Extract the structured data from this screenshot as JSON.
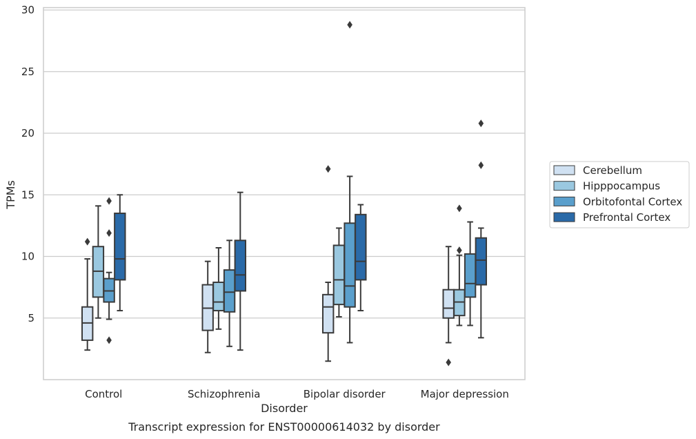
{
  "chart_data": {
    "type": "box",
    "xlabel": "Disorder",
    "ylabel": "TPMs",
    "caption": "Transcript expression for ENST00000614032 by disorder",
    "ylim": [
      0,
      30.3
    ],
    "yticks": [
      5,
      10,
      15,
      20,
      25,
      30
    ],
    "grid": true,
    "legend_position": "right",
    "categories": [
      "Control",
      "Schizophrenia",
      "Bipolar disorder",
      "Major depression"
    ],
    "series": [
      {
        "name": "Cerebellum",
        "color": "#d0e1f2",
        "boxes": [
          {
            "whislo": 2.4,
            "q1": 3.2,
            "med": 4.6,
            "q3": 5.9,
            "whishi": 9.8,
            "fliers": [
              11.2
            ]
          },
          {
            "whislo": 2.2,
            "q1": 4.0,
            "med": 5.8,
            "q3": 7.7,
            "whishi": 9.6,
            "fliers": []
          },
          {
            "whislo": 1.5,
            "q1": 3.8,
            "med": 5.9,
            "q3": 6.9,
            "whishi": 7.9,
            "fliers": [
              17.1
            ]
          },
          {
            "whislo": 3.0,
            "q1": 5.0,
            "med": 5.8,
            "q3": 7.3,
            "whishi": 10.8,
            "fliers": [
              1.4
            ]
          }
        ]
      },
      {
        "name": "Hipppocampus",
        "color": "#9ac8e0",
        "boxes": [
          {
            "whislo": 5.0,
            "q1": 6.7,
            "med": 8.8,
            "q3": 10.8,
            "whishi": 14.1,
            "fliers": []
          },
          {
            "whislo": 4.1,
            "q1": 5.6,
            "med": 6.3,
            "q3": 7.9,
            "whishi": 10.7,
            "fliers": []
          },
          {
            "whislo": 5.1,
            "q1": 6.1,
            "med": 8.1,
            "q3": 10.9,
            "whishi": 12.3,
            "fliers": []
          },
          {
            "whislo": 4.4,
            "q1": 5.2,
            "med": 6.3,
            "q3": 7.3,
            "whishi": 10.1,
            "fliers": [
              10.5,
              13.9
            ]
          }
        ]
      },
      {
        "name": "Orbitofontal Cortex",
        "color": "#5a9fcc",
        "boxes": [
          {
            "whislo": 4.9,
            "q1": 6.3,
            "med": 7.2,
            "q3": 8.2,
            "whishi": 8.7,
            "fliers": [
              3.2,
              11.9,
              14.5
            ]
          },
          {
            "whislo": 2.7,
            "q1": 5.5,
            "med": 7.1,
            "q3": 8.9,
            "whishi": 11.3,
            "fliers": []
          },
          {
            "whislo": 3.0,
            "q1": 5.9,
            "med": 7.6,
            "q3": 12.7,
            "whishi": 16.5,
            "fliers": [
              28.8
            ]
          },
          {
            "whislo": 4.4,
            "q1": 6.7,
            "med": 7.8,
            "q3": 10.2,
            "whishi": 12.8,
            "fliers": []
          }
        ]
      },
      {
        "name": "Prefrontal Cortex",
        "color": "#2a6aa8",
        "boxes": [
          {
            "whislo": 5.6,
            "q1": 8.1,
            "med": 9.8,
            "q3": 13.5,
            "whishi": 15.0,
            "fliers": []
          },
          {
            "whislo": 2.4,
            "q1": 7.2,
            "med": 8.5,
            "q3": 11.3,
            "whishi": 15.2,
            "fliers": []
          },
          {
            "whislo": 5.6,
            "q1": 8.1,
            "med": 9.6,
            "q3": 13.4,
            "whishi": 14.2,
            "fliers": []
          },
          {
            "whislo": 3.4,
            "q1": 7.7,
            "med": 9.7,
            "q3": 11.5,
            "whishi": 12.3,
            "fliers": [
              17.4,
              20.8
            ]
          }
        ]
      }
    ]
  }
}
